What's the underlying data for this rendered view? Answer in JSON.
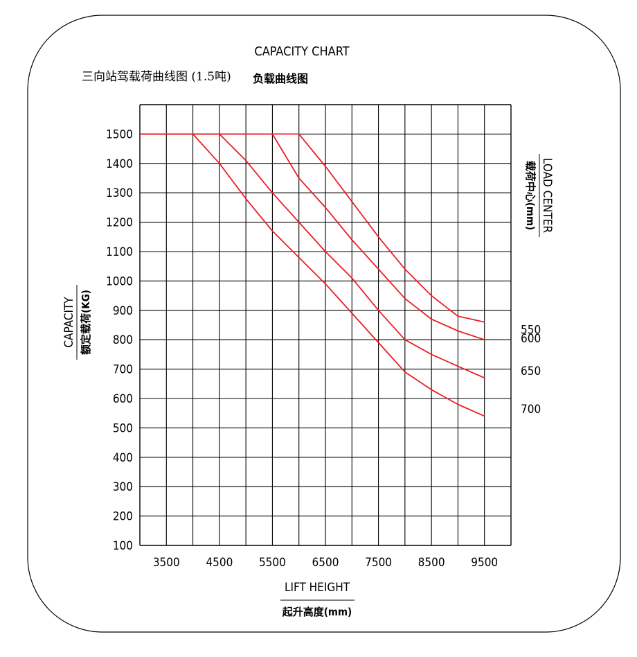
{
  "header": {
    "title_cn": "三向站驾载荷曲线图 (1.5吨)"
  },
  "chart_data": {
    "type": "line",
    "title": "CAPACITY CHART",
    "subtitle": "负载曲线图",
    "xlabel": "LIFT HEIGHT",
    "xlabel_cn": "起升高度(mm)",
    "ylabel": "CAPACITY",
    "ylabel_cn": "额定载荷(KG)",
    "right_label": "LOAD CENTER",
    "right_label_cn": "载荷中心(mm)",
    "x_ticks": [
      3500,
      4500,
      5500,
      6500,
      7500,
      8500,
      9500
    ],
    "y_ticks": [
      100,
      200,
      300,
      400,
      500,
      600,
      700,
      800,
      900,
      1000,
      1100,
      1200,
      1300,
      1400,
      1500
    ],
    "xlim": [
      3000,
      10000
    ],
    "ylim": [
      100,
      1600
    ],
    "grid": true,
    "line_color": "#ee1c25",
    "series": [
      {
        "name": "550",
        "points": [
          [
            3000,
            1500
          ],
          [
            6000,
            1500
          ],
          [
            6500,
            1390
          ],
          [
            7000,
            1270
          ],
          [
            7500,
            1150
          ],
          [
            8000,
            1040
          ],
          [
            8500,
            950
          ],
          [
            9000,
            880
          ],
          [
            9500,
            860
          ]
        ]
      },
      {
        "name": "600",
        "points": [
          [
            3000,
            1500
          ],
          [
            5500,
            1500
          ],
          [
            6000,
            1350
          ],
          [
            6500,
            1250
          ],
          [
            7000,
            1140
          ],
          [
            7500,
            1040
          ],
          [
            8000,
            940
          ],
          [
            8500,
            870
          ],
          [
            9000,
            830
          ],
          [
            9500,
            800
          ]
        ]
      },
      {
        "name": "650",
        "points": [
          [
            3000,
            1500
          ],
          [
            4500,
            1500
          ],
          [
            5000,
            1410
          ],
          [
            5500,
            1300
          ],
          [
            6000,
            1200
          ],
          [
            6500,
            1100
          ],
          [
            7000,
            1010
          ],
          [
            7500,
            900
          ],
          [
            8000,
            800
          ],
          [
            8500,
            750
          ],
          [
            9000,
            710
          ],
          [
            9500,
            670
          ]
        ]
      },
      {
        "name": "700",
        "points": [
          [
            3000,
            1500
          ],
          [
            4000,
            1500
          ],
          [
            4500,
            1400
          ],
          [
            5000,
            1280
          ],
          [
            5500,
            1170
          ],
          [
            6000,
            1080
          ],
          [
            6500,
            990
          ],
          [
            7000,
            890
          ],
          [
            7500,
            790
          ],
          [
            8000,
            690
          ],
          [
            8500,
            630
          ],
          [
            9000,
            580
          ],
          [
            9500,
            540
          ]
        ]
      }
    ]
  }
}
